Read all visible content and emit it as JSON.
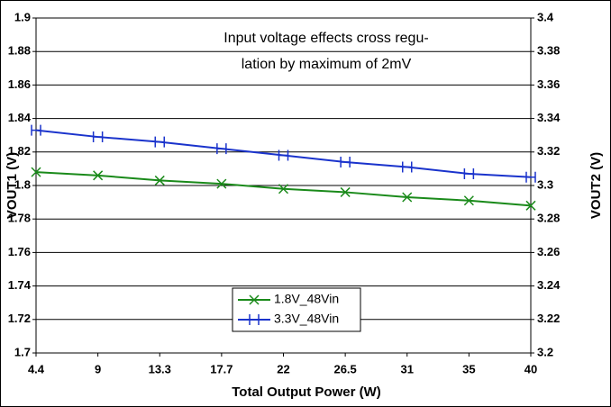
{
  "chart_data": {
    "type": "line",
    "annotation": [
      "Input voltage effects cross regu-",
      "lation by maximum of 2mV"
    ],
    "x_label": "Total Output Power (W)",
    "y_label": "VOUT1 (V)",
    "y2_label": "VOUT2 (V)",
    "categories": [
      "4.4",
      "9",
      "13.3",
      "17.7",
      "22",
      "26.5",
      "31",
      "35",
      "40"
    ],
    "ylim": [
      1.7,
      1.9
    ],
    "yticks": [
      1.7,
      1.72,
      1.74,
      1.76,
      1.78,
      1.8,
      1.82,
      1.84,
      1.86,
      1.88,
      1.9
    ],
    "y2lim": [
      3.2,
      3.4
    ],
    "y2ticks": [
      3.2,
      3.22,
      3.24,
      3.26,
      3.28,
      3.3,
      3.32,
      3.34,
      3.36,
      3.38,
      3.4
    ],
    "grid": true,
    "legend": "lower center",
    "series": [
      {
        "name": "1.8V_48Vin",
        "color": "#1a8a1a",
        "marker": "x",
        "values": [
          1.808,
          1.806,
          1.803,
          1.801,
          1.798,
          1.796,
          1.793,
          1.791,
          1.788
        ]
      },
      {
        "name": "3.3V_48Vin",
        "color": "#1a33cc",
        "marker": "bar",
        "axis": "y2",
        "values": [
          3.333,
          3.329,
          3.326,
          3.322,
          3.318,
          3.314,
          3.311,
          3.307,
          3.305
        ]
      }
    ]
  }
}
